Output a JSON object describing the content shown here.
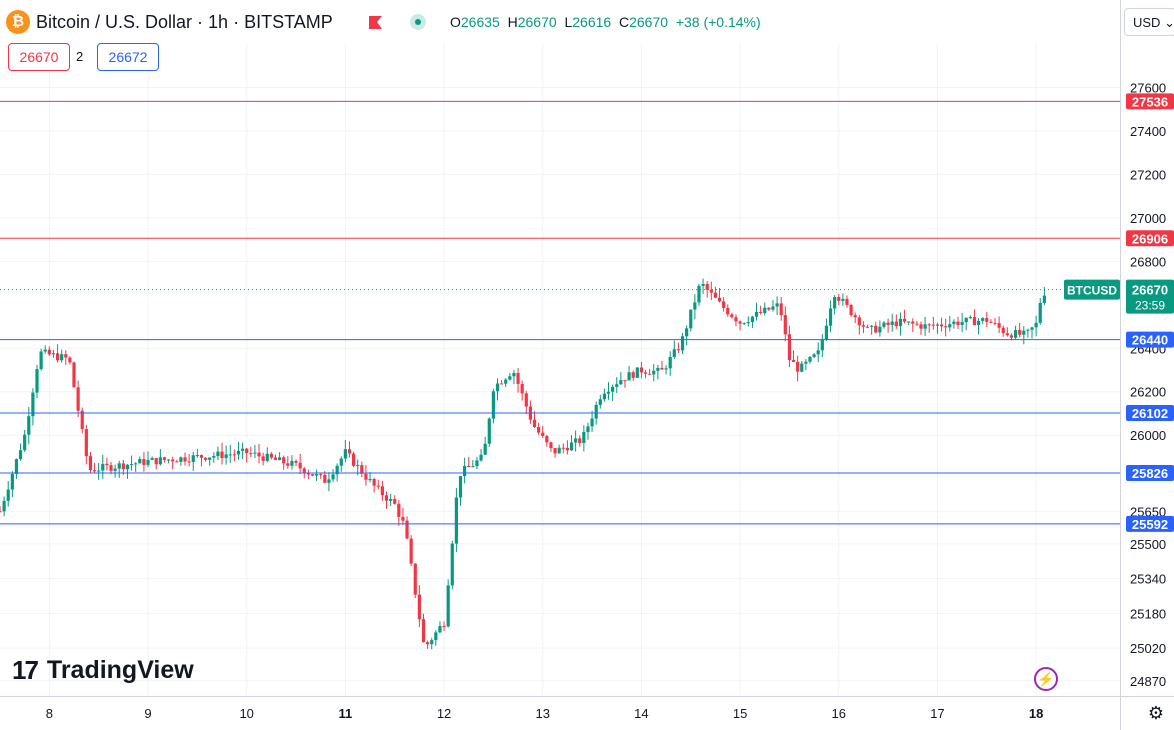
{
  "header": {
    "symbol_title": "Bitcoin / U.S. Dollar · 1h · BITSTAMP",
    "ohlc": {
      "o_label": "O",
      "o": "26635",
      "h_label": "H",
      "h": "26670",
      "l_label": "L",
      "l": "26616",
      "c_label": "C",
      "c": "26670",
      "change": "+38 (+0.14%)"
    },
    "sell_price": "26670",
    "spread": "2",
    "buy_price": "26672",
    "currency": "USD"
  },
  "branding": {
    "logo_text": "TradingView"
  },
  "colors": {
    "up": "#089981",
    "down": "#f23645",
    "resistance": "#f23645",
    "support": "#2962ff",
    "grid": "#f0f3fa",
    "text": "#131722"
  },
  "chart_data": {
    "type": "candlestick",
    "timeframe": "1h",
    "ylim": [
      24800,
      27800
    ],
    "y_ticks": [
      24870,
      25020,
      25180,
      25340,
      25500,
      25650,
      26000,
      26200,
      26400,
      26800,
      27000,
      27200,
      27400,
      27600
    ],
    "x_ticks": [
      {
        "label": "8",
        "day": 8,
        "bold": false
      },
      {
        "label": "9",
        "day": 9,
        "bold": false
      },
      {
        "label": "10",
        "day": 10,
        "bold": false
      },
      {
        "label": "11",
        "day": 11,
        "bold": true
      },
      {
        "label": "12",
        "day": 12,
        "bold": false
      },
      {
        "label": "13",
        "day": 13,
        "bold": false
      },
      {
        "label": "14",
        "day": 14,
        "bold": false
      },
      {
        "label": "15",
        "day": 15,
        "bold": false
      },
      {
        "label": "16",
        "day": 16,
        "bold": false
      },
      {
        "label": "17",
        "day": 17,
        "bold": false
      },
      {
        "label": "18",
        "day": 18,
        "bold": true
      }
    ],
    "resistance_levels": [
      27536,
      26906
    ],
    "support_levels": [
      26440,
      26102,
      25826,
      25592
    ],
    "current_price": 26670,
    "price_tag": {
      "symbol": "BTCUSD",
      "price": "26670",
      "countdown": "23:59"
    },
    "ohlc_path": [
      [
        7.5,
        25650
      ],
      [
        7.75,
        26000
      ],
      [
        7.9,
        26380
      ],
      [
        8.2,
        26350
      ],
      [
        8.4,
        25840
      ],
      [
        9.0,
        25880
      ],
      [
        9.5,
        25900
      ],
      [
        10.0,
        25920
      ],
      [
        10.5,
        25860
      ],
      [
        10.8,
        25790
      ],
      [
        11.0,
        25920
      ],
      [
        11.3,
        25760
      ],
      [
        11.5,
        25680
      ],
      [
        11.6,
        25580
      ],
      [
        11.8,
        25020
      ],
      [
        12.0,
        25140
      ],
      [
        12.15,
        25820
      ],
      [
        12.4,
        25900
      ],
      [
        12.5,
        26220
      ],
      [
        12.7,
        26300
      ],
      [
        12.9,
        26050
      ],
      [
        13.1,
        25920
      ],
      [
        13.4,
        25980
      ],
      [
        13.6,
        26200
      ],
      [
        13.8,
        26260
      ],
      [
        14.0,
        26300
      ],
      [
        14.2,
        26290
      ],
      [
        14.4,
        26420
      ],
      [
        14.6,
        26700
      ],
      [
        14.8,
        26600
      ],
      [
        15.0,
        26520
      ],
      [
        15.2,
        26560
      ],
      [
        15.4,
        26600
      ],
      [
        15.5,
        26350
      ],
      [
        15.6,
        26300
      ],
      [
        15.8,
        26380
      ],
      [
        15.95,
        26660
      ],
      [
        16.1,
        26580
      ],
      [
        16.3,
        26480
      ],
      [
        16.6,
        26520
      ],
      [
        16.9,
        26500
      ],
      [
        17.2,
        26520
      ],
      [
        17.5,
        26530
      ],
      [
        17.7,
        26470
      ],
      [
        17.9,
        26460
      ],
      [
        18.0,
        26510
      ],
      [
        18.05,
        26635
      ],
      [
        18.1,
        26670
      ]
    ]
  }
}
